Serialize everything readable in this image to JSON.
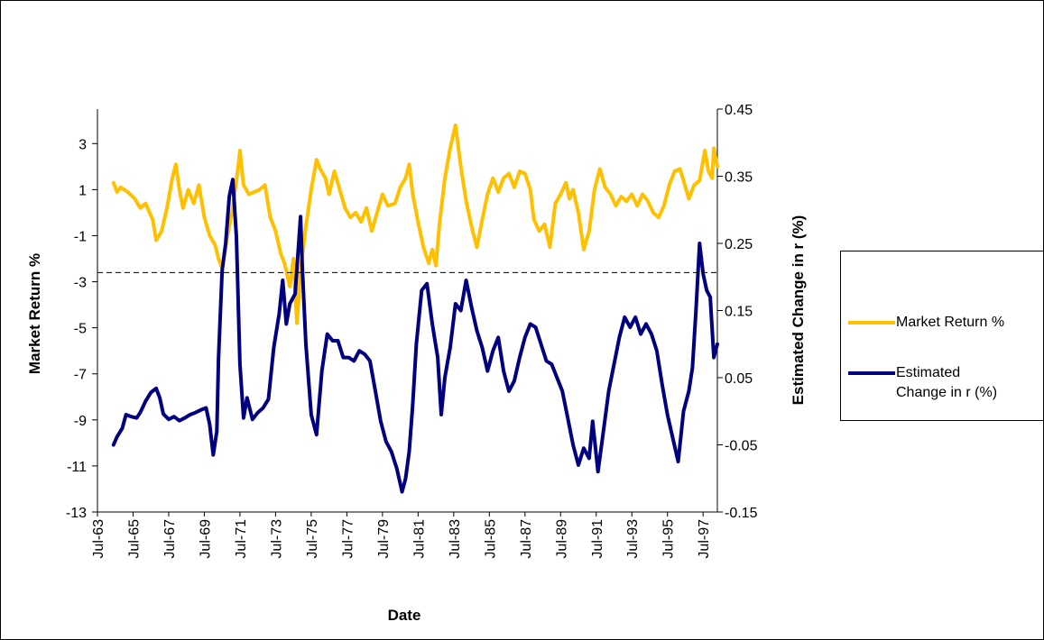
{
  "chart_data": {
    "type": "line",
    "xlabel": "Date",
    "x_ticks": [
      "Jul-63",
      "Jul-65",
      "Jul-67",
      "Jul-69",
      "Jul-71",
      "Jul-73",
      "Jul-75",
      "Jul-77",
      "Jul-79",
      "Jul-81",
      "Jul-83",
      "Jul-85",
      "Jul-87",
      "Jul-89",
      "Jul-91",
      "Jul-93",
      "Jul-95",
      "Jul-97"
    ],
    "x_range": [
      1963.5,
      1998.3
    ],
    "y_left": {
      "label": "Market Return %",
      "range": [
        -13,
        4.5
      ],
      "ticks": [
        3,
        1,
        -1,
        -3,
        -5,
        -7,
        -9,
        -11,
        -13
      ]
    },
    "y_right": {
      "label": "Estimated Change in r (%)",
      "range": [
        -0.15,
        0.45
      ],
      "ticks": [
        "0.45",
        "0.35",
        "0.25",
        "0.15",
        "0.05",
        "-0.05",
        "-0.15"
      ]
    },
    "reference_line": {
      "axis": "left",
      "value": -2.6,
      "style": "dashed"
    },
    "grid": false,
    "legend_position": "right",
    "series": [
      {
        "name": "Market Return %",
        "axis": "left",
        "color": "#FFC000",
        "points": [
          [
            1964.4,
            1.3
          ],
          [
            1964.6,
            0.9
          ],
          [
            1964.8,
            1.1
          ],
          [
            1965.2,
            0.9
          ],
          [
            1965.6,
            0.6
          ],
          [
            1965.9,
            0.2
          ],
          [
            1966.2,
            0.4
          ],
          [
            1966.6,
            -0.3
          ],
          [
            1966.8,
            -1.2
          ],
          [
            1967.1,
            -0.8
          ],
          [
            1967.4,
            0.2
          ],
          [
            1967.7,
            1.5
          ],
          [
            1967.9,
            2.1
          ],
          [
            1968.1,
            1.0
          ],
          [
            1968.3,
            0.2
          ],
          [
            1968.6,
            1.0
          ],
          [
            1968.9,
            0.4
          ],
          [
            1969.2,
            1.2
          ],
          [
            1969.5,
            -0.2
          ],
          [
            1969.8,
            -1.0
          ],
          [
            1970.1,
            -1.4
          ],
          [
            1970.3,
            -2.0
          ],
          [
            1970.5,
            -2.4
          ],
          [
            1970.8,
            -1.0
          ],
          [
            1971.1,
            0.2
          ],
          [
            1971.4,
            2.0
          ],
          [
            1971.5,
            2.7
          ],
          [
            1971.7,
            1.2
          ],
          [
            1972.0,
            0.8
          ],
          [
            1972.3,
            0.9
          ],
          [
            1972.6,
            1.0
          ],
          [
            1972.9,
            1.2
          ],
          [
            1973.2,
            -0.2
          ],
          [
            1973.5,
            -0.8
          ],
          [
            1973.8,
            -1.8
          ],
          [
            1974.0,
            -2.2
          ],
          [
            1974.3,
            -3.2
          ],
          [
            1974.5,
            -2.0
          ],
          [
            1974.7,
            -4.8
          ],
          [
            1974.9,
            -2.5
          ],
          [
            1975.2,
            -0.6
          ],
          [
            1975.5,
            1.0
          ],
          [
            1975.8,
            2.3
          ],
          [
            1976.0,
            1.9
          ],
          [
            1976.3,
            1.5
          ],
          [
            1976.5,
            0.8
          ],
          [
            1976.8,
            1.8
          ],
          [
            1977.1,
            1.0
          ],
          [
            1977.4,
            0.2
          ],
          [
            1977.7,
            -0.2
          ],
          [
            1978.0,
            0.0
          ],
          [
            1978.3,
            -0.4
          ],
          [
            1978.6,
            0.2
          ],
          [
            1978.9,
            -0.8
          ],
          [
            1979.2,
            0.0
          ],
          [
            1979.5,
            0.8
          ],
          [
            1979.8,
            0.3
          ],
          [
            1980.2,
            0.4
          ],
          [
            1980.5,
            1.1
          ],
          [
            1980.8,
            1.5
          ],
          [
            1981.0,
            2.1
          ],
          [
            1981.2,
            0.8
          ],
          [
            1981.5,
            -0.4
          ],
          [
            1981.8,
            -1.5
          ],
          [
            1982.1,
            -2.2
          ],
          [
            1982.3,
            -1.6
          ],
          [
            1982.5,
            -2.3
          ],
          [
            1982.7,
            -0.5
          ],
          [
            1983.0,
            1.5
          ],
          [
            1983.3,
            2.8
          ],
          [
            1983.6,
            3.8
          ],
          [
            1983.9,
            2.0
          ],
          [
            1984.2,
            0.5
          ],
          [
            1984.5,
            -0.6
          ],
          [
            1984.8,
            -1.5
          ],
          [
            1985.1,
            -0.3
          ],
          [
            1985.4,
            0.8
          ],
          [
            1985.7,
            1.5
          ],
          [
            1986.0,
            0.9
          ],
          [
            1986.3,
            1.5
          ],
          [
            1986.6,
            1.7
          ],
          [
            1986.9,
            1.1
          ],
          [
            1987.2,
            1.8
          ],
          [
            1987.5,
            1.7
          ],
          [
            1987.8,
            1.0
          ],
          [
            1988.0,
            -0.3
          ],
          [
            1988.3,
            -0.8
          ],
          [
            1988.6,
            -0.5
          ],
          [
            1988.9,
            -1.5
          ],
          [
            1989.2,
            0.4
          ],
          [
            1989.5,
            0.8
          ],
          [
            1989.8,
            1.3
          ],
          [
            1990.0,
            0.6
          ],
          [
            1990.2,
            1.0
          ],
          [
            1990.5,
            0.0
          ],
          [
            1990.8,
            -1.6
          ],
          [
            1991.1,
            -0.8
          ],
          [
            1991.4,
            1.0
          ],
          [
            1991.7,
            1.9
          ],
          [
            1992.0,
            1.1
          ],
          [
            1992.3,
            0.8
          ],
          [
            1992.6,
            0.3
          ],
          [
            1992.9,
            0.7
          ],
          [
            1993.2,
            0.5
          ],
          [
            1993.5,
            0.8
          ],
          [
            1993.8,
            0.3
          ],
          [
            1994.1,
            0.8
          ],
          [
            1994.4,
            0.5
          ],
          [
            1994.7,
            0.0
          ],
          [
            1995.0,
            -0.2
          ],
          [
            1995.3,
            0.3
          ],
          [
            1995.6,
            1.2
          ],
          [
            1995.9,
            1.8
          ],
          [
            1996.2,
            1.9
          ],
          [
            1996.4,
            1.4
          ],
          [
            1996.7,
            0.6
          ],
          [
            1997.0,
            1.2
          ],
          [
            1997.3,
            1.4
          ],
          [
            1997.6,
            2.7
          ],
          [
            1997.8,
            1.8
          ],
          [
            1998.0,
            1.5
          ],
          [
            1998.1,
            2.8
          ],
          [
            1998.3,
            2.0
          ]
        ]
      },
      {
        "name": "Estimated Change in r (%)",
        "axis": "right",
        "color": "#000080",
        "points": [
          [
            1964.4,
            -0.05
          ],
          [
            1964.6,
            -0.038
          ],
          [
            1964.9,
            -0.025
          ],
          [
            1965.1,
            -0.005
          ],
          [
            1965.4,
            -0.008
          ],
          [
            1965.7,
            -0.01
          ],
          [
            1965.9,
            -0.002
          ],
          [
            1966.2,
            0.015
          ],
          [
            1966.5,
            0.028
          ],
          [
            1966.8,
            0.034
          ],
          [
            1967.0,
            0.02
          ],
          [
            1967.2,
            -0.004
          ],
          [
            1967.5,
            -0.012
          ],
          [
            1967.8,
            -0.008
          ],
          [
            1968.1,
            -0.014
          ],
          [
            1968.4,
            -0.01
          ],
          [
            1968.7,
            -0.005
          ],
          [
            1969.0,
            -0.002
          ],
          [
            1969.3,
            0.002
          ],
          [
            1969.6,
            0.005
          ],
          [
            1969.8,
            -0.02
          ],
          [
            1970.0,
            -0.065
          ],
          [
            1970.2,
            -0.03
          ],
          [
            1970.3,
            0.08
          ],
          [
            1970.5,
            0.21
          ],
          [
            1970.7,
            0.25
          ],
          [
            1970.9,
            0.32
          ],
          [
            1971.1,
            0.345
          ],
          [
            1971.3,
            0.26
          ],
          [
            1971.5,
            0.07
          ],
          [
            1971.7,
            -0.01
          ],
          [
            1971.9,
            0.02
          ],
          [
            1972.2,
            -0.012
          ],
          [
            1972.5,
            -0.002
          ],
          [
            1972.8,
            0.005
          ],
          [
            1973.1,
            0.018
          ],
          [
            1973.4,
            0.095
          ],
          [
            1973.7,
            0.145
          ],
          [
            1973.9,
            0.195
          ],
          [
            1974.1,
            0.13
          ],
          [
            1974.3,
            0.16
          ],
          [
            1974.6,
            0.175
          ],
          [
            1974.9,
            0.29
          ],
          [
            1975.0,
            0.215
          ],
          [
            1975.2,
            0.1
          ],
          [
            1975.5,
            -0.005
          ],
          [
            1975.8,
            -0.035
          ],
          [
            1976.1,
            0.06
          ],
          [
            1976.4,
            0.115
          ],
          [
            1976.7,
            0.105
          ],
          [
            1977.0,
            0.105
          ],
          [
            1977.3,
            0.08
          ],
          [
            1977.6,
            0.08
          ],
          [
            1977.9,
            0.075
          ],
          [
            1978.2,
            0.09
          ],
          [
            1978.5,
            0.085
          ],
          [
            1978.8,
            0.075
          ],
          [
            1979.1,
            0.03
          ],
          [
            1979.4,
            -0.015
          ],
          [
            1979.7,
            -0.045
          ],
          [
            1980.0,
            -0.06
          ],
          [
            1980.3,
            -0.085
          ],
          [
            1980.6,
            -0.12
          ],
          [
            1980.8,
            -0.1
          ],
          [
            1981.0,
            -0.06
          ],
          [
            1981.2,
            0.01
          ],
          [
            1981.4,
            0.1
          ],
          [
            1981.7,
            0.18
          ],
          [
            1982.0,
            0.19
          ],
          [
            1982.3,
            0.13
          ],
          [
            1982.6,
            0.08
          ],
          [
            1982.8,
            -0.005
          ],
          [
            1983.0,
            0.05
          ],
          [
            1983.3,
            0.095
          ],
          [
            1983.6,
            0.16
          ],
          [
            1983.9,
            0.15
          ],
          [
            1984.2,
            0.195
          ],
          [
            1984.5,
            0.155
          ],
          [
            1984.8,
            0.12
          ],
          [
            1985.1,
            0.095
          ],
          [
            1985.4,
            0.06
          ],
          [
            1985.7,
            0.09
          ],
          [
            1986.0,
            0.11
          ],
          [
            1986.3,
            0.06
          ],
          [
            1986.6,
            0.03
          ],
          [
            1986.9,
            0.045
          ],
          [
            1987.2,
            0.08
          ],
          [
            1987.5,
            0.11
          ],
          [
            1987.8,
            0.13
          ],
          [
            1988.1,
            0.125
          ],
          [
            1988.4,
            0.1
          ],
          [
            1988.7,
            0.075
          ],
          [
            1989.0,
            0.07
          ],
          [
            1989.3,
            0.05
          ],
          [
            1989.6,
            0.03
          ],
          [
            1989.9,
            -0.01
          ],
          [
            1990.2,
            -0.05
          ],
          [
            1990.5,
            -0.08
          ],
          [
            1990.8,
            -0.055
          ],
          [
            1991.1,
            -0.07
          ],
          [
            1991.3,
            -0.015
          ],
          [
            1991.6,
            -0.09
          ],
          [
            1991.9,
            -0.03
          ],
          [
            1992.2,
            0.03
          ],
          [
            1992.5,
            0.07
          ],
          [
            1992.8,
            0.11
          ],
          [
            1993.1,
            0.14
          ],
          [
            1993.4,
            0.125
          ],
          [
            1993.7,
            0.14
          ],
          [
            1994.0,
            0.115
          ],
          [
            1994.3,
            0.13
          ],
          [
            1994.6,
            0.115
          ],
          [
            1994.9,
            0.09
          ],
          [
            1995.2,
            0.04
          ],
          [
            1995.5,
            -0.005
          ],
          [
            1995.8,
            -0.04
          ],
          [
            1996.1,
            -0.075
          ],
          [
            1996.4,
            0.0
          ],
          [
            1996.7,
            0.03
          ],
          [
            1996.9,
            0.065
          ],
          [
            1997.1,
            0.15
          ],
          [
            1997.3,
            0.25
          ],
          [
            1997.5,
            0.205
          ],
          [
            1997.7,
            0.18
          ],
          [
            1997.9,
            0.17
          ],
          [
            1998.1,
            0.08
          ],
          [
            1998.3,
            0.1
          ]
        ]
      }
    ]
  },
  "legend": {
    "items": [
      {
        "label": "Market Return %",
        "color": "#FFC000"
      },
      {
        "label": "Estimated Change in r (%)",
        "label_lines": [
          "Estimated",
          "Change in r (%)"
        ],
        "color": "#000080"
      }
    ]
  }
}
